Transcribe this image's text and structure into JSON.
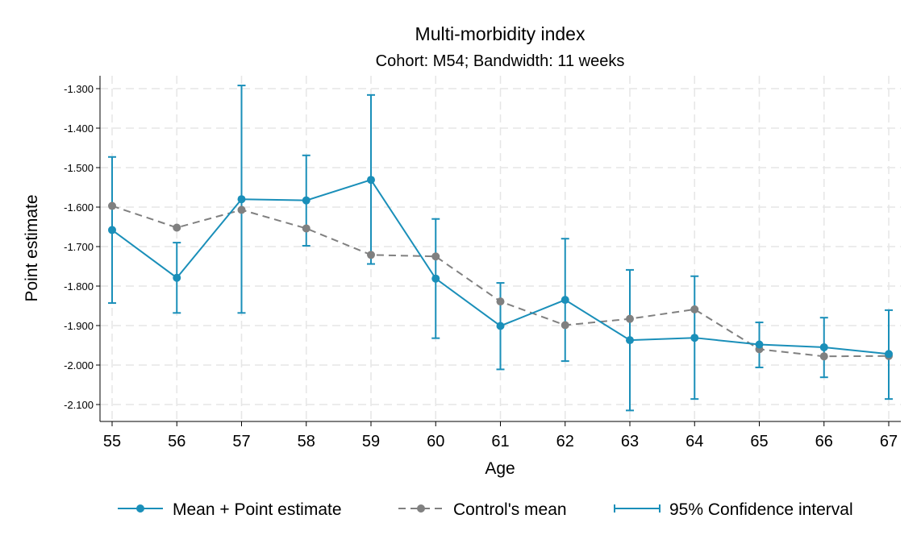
{
  "chart_data": {
    "type": "line",
    "title": "Multi-morbidity index",
    "subtitle": "Cohort: M54; Bandwidth: 11 weeks",
    "xlabel": "Age",
    "ylabel": "Point estimate",
    "xlim": [
      55,
      67
    ],
    "ylim": [
      -2.15,
      -1.27
    ],
    "x": [
      55,
      56,
      57,
      58,
      59,
      60,
      61,
      62,
      63,
      64,
      65,
      66,
      67
    ],
    "yticks": [
      -1.3,
      -1.4,
      -1.5,
      -1.6,
      -1.7,
      -1.8,
      -1.9,
      -2.0,
      -2.1
    ],
    "ytick_labels": [
      "-1.300",
      "-1.400",
      "-1.500",
      "-1.600",
      "-1.700",
      "-1.800",
      "-1.900",
      "-2.000",
      "-2.100"
    ],
    "xtick_labels": [
      "55",
      "56",
      "57",
      "58",
      "59",
      "60",
      "61",
      "62",
      "63",
      "64",
      "65",
      "66",
      "67"
    ],
    "grid": true,
    "legend_position": "bottom",
    "series": [
      {
        "name": "Mean + Point estimate",
        "style": "solid-marker",
        "color": "#1a8fb9",
        "values": [
          -1.658,
          -1.779,
          -1.58,
          -1.583,
          -1.531,
          -1.781,
          -1.901,
          -1.835,
          -1.937,
          -1.931,
          -1.948,
          -1.955,
          -1.972
        ]
      },
      {
        "name": "Control's mean",
        "style": "dashed-marker",
        "color": "#808080",
        "values": [
          -1.597,
          -1.652,
          -1.607,
          -1.654,
          -1.721,
          -1.725,
          -1.839,
          -1.899,
          -1.883,
          -1.859,
          -1.96,
          -1.978,
          -1.977
        ]
      },
      {
        "name": "95% Confidence interval",
        "style": "errorbar",
        "color": "#1a8fb9",
        "lower": [
          -1.843,
          -1.868,
          -1.868,
          -1.698,
          -1.744,
          -1.932,
          -2.011,
          -1.99,
          -2.115,
          -2.086,
          -2.006,
          -2.031,
          -2.086
        ],
        "upper": [
          -1.473,
          -1.69,
          -1.292,
          -1.469,
          -1.316,
          -1.63,
          -1.792,
          -1.68,
          -1.759,
          -1.775,
          -1.892,
          -1.88,
          -1.861
        ]
      }
    ]
  }
}
